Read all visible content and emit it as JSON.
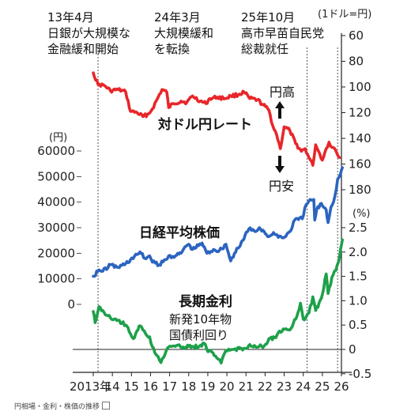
{
  "annotations": [
    {
      "line1": "13年4月",
      "line2": "日銀が大規模な",
      "line3": "金融緩和開始"
    },
    {
      "line1": "24年3月",
      "line2": "大規模緩和",
      "line3": "を転換"
    },
    {
      "line1": "25年10月",
      "line2": "高市早苗自民党",
      "line3": "総裁就任"
    }
  ],
  "caption": "円相場・金利・株価の推移",
  "colors": {
    "usdjpy": "#e8262a",
    "nikkei": "#2b64c0",
    "jgb": "#1ea04a",
    "axis": "#222222",
    "guide": "#555555"
  },
  "chart_data": {
    "type": "line",
    "x": {
      "range": [
        2013.0,
        2026.0
      ],
      "tick_labels": [
        "2013年",
        "14",
        "15",
        "16",
        "17",
        "18",
        "19",
        "20",
        "21",
        "22",
        "23",
        "24",
        "25",
        "26"
      ]
    },
    "series": [
      {
        "key": "usdjpy",
        "name": "対ドル円レート",
        "axis": "right-top",
        "unit_label": "(1ドル=円)",
        "y_ticks": [
          60,
          80,
          100,
          120,
          140,
          160,
          180
        ],
        "y_range": [
          60,
          180
        ],
        "inverted": true,
        "direction_labels": {
          "up": "円高",
          "down": "円安"
        },
        "points": [
          [
            2013.0,
            89
          ],
          [
            2013.25,
            98
          ],
          [
            2013.6,
            99
          ],
          [
            2013.9,
            103
          ],
          [
            2014.3,
            102
          ],
          [
            2014.7,
            104
          ],
          [
            2014.95,
            119
          ],
          [
            2015.3,
            120
          ],
          [
            2015.6,
            123
          ],
          [
            2015.9,
            121
          ],
          [
            2016.1,
            117
          ],
          [
            2016.4,
            108
          ],
          [
            2016.6,
            102
          ],
          [
            2016.85,
            104
          ],
          [
            2016.95,
            116
          ],
          [
            2017.2,
            113
          ],
          [
            2017.6,
            111
          ],
          [
            2017.9,
            112
          ],
          [
            2018.2,
            107
          ],
          [
            2018.6,
            111
          ],
          [
            2018.9,
            113
          ],
          [
            2019.1,
            109
          ],
          [
            2019.5,
            108
          ],
          [
            2019.9,
            109
          ],
          [
            2020.2,
            107
          ],
          [
            2020.6,
            106
          ],
          [
            2020.9,
            104
          ],
          [
            2021.2,
            109
          ],
          [
            2021.6,
            110
          ],
          [
            2021.9,
            114
          ],
          [
            2022.2,
            118
          ],
          [
            2022.4,
            130
          ],
          [
            2022.6,
            137
          ],
          [
            2022.8,
            148
          ],
          [
            2023.0,
            131
          ],
          [
            2023.3,
            134
          ],
          [
            2023.6,
            144
          ],
          [
            2023.9,
            150
          ],
          [
            2024.1,
            148
          ],
          [
            2024.3,
            155
          ],
          [
            2024.5,
            161
          ],
          [
            2024.65,
            145
          ],
          [
            2024.8,
            150
          ],
          [
            2025.0,
            157
          ],
          [
            2025.2,
            148
          ],
          [
            2025.35,
            143
          ],
          [
            2025.5,
            147
          ],
          [
            2025.65,
            148
          ],
          [
            2025.8,
            153
          ],
          [
            2025.9,
            155
          ]
        ]
      },
      {
        "key": "nikkei",
        "name": "日経平均株価",
        "axis": "left",
        "unit_label": "(円)",
        "y_ticks": [
          0,
          10000,
          20000,
          30000,
          40000,
          50000,
          60000
        ],
        "y_range": [
          0,
          60000
        ],
        "points": [
          [
            2013.0,
            11000
          ],
          [
            2013.3,
            13500
          ],
          [
            2013.5,
            13000
          ],
          [
            2013.9,
            15500
          ],
          [
            2014.3,
            14500
          ],
          [
            2014.7,
            16000
          ],
          [
            2014.95,
            17500
          ],
          [
            2015.3,
            19500
          ],
          [
            2015.45,
            20500
          ],
          [
            2015.7,
            18000
          ],
          [
            2015.95,
            19000
          ],
          [
            2016.1,
            16500
          ],
          [
            2016.45,
            15500
          ],
          [
            2016.8,
            17500
          ],
          [
            2016.95,
            19000
          ],
          [
            2017.3,
            19000
          ],
          [
            2017.6,
            20000
          ],
          [
            2017.8,
            22500
          ],
          [
            2018.0,
            23500
          ],
          [
            2018.2,
            21500
          ],
          [
            2018.7,
            24000
          ],
          [
            2018.95,
            20000
          ],
          [
            2019.3,
            21500
          ],
          [
            2019.6,
            21000
          ],
          [
            2019.95,
            23500
          ],
          [
            2020.2,
            17000
          ],
          [
            2020.4,
            20000
          ],
          [
            2020.7,
            23000
          ],
          [
            2020.95,
            27000
          ],
          [
            2021.15,
            29500
          ],
          [
            2021.5,
            28500
          ],
          [
            2021.7,
            30000
          ],
          [
            2021.95,
            28500
          ],
          [
            2022.2,
            26500
          ],
          [
            2022.5,
            27500
          ],
          [
            2022.95,
            26000
          ],
          [
            2023.3,
            28500
          ],
          [
            2023.55,
            33000
          ],
          [
            2023.95,
            33500
          ],
          [
            2024.15,
            39000
          ],
          [
            2024.3,
            40500
          ],
          [
            2024.55,
            41000
          ],
          [
            2024.6,
            33000
          ],
          [
            2024.7,
            37000
          ],
          [
            2024.95,
            39500
          ],
          [
            2025.2,
            37000
          ],
          [
            2025.3,
            32000
          ],
          [
            2025.45,
            38000
          ],
          [
            2025.65,
            42000
          ],
          [
            2025.8,
            49000
          ],
          [
            2025.95,
            51000
          ],
          [
            2026.05,
            53500
          ]
        ]
      },
      {
        "key": "jgb",
        "name": "長期金利",
        "sub_label": [
          "新発10年物",
          "国債利回り"
        ],
        "axis": "right-bottom",
        "unit_label": "(%)",
        "y_ticks": [
          -0.5,
          0,
          0.5,
          1.0,
          1.5,
          2.0,
          2.5
        ],
        "y_tick_labels": [
          "-0.5",
          "0",
          "0.5",
          "1.0",
          "1.5",
          "2.0",
          "2.5"
        ],
        "y_range": [
          -0.5,
          2.5
        ],
        "points": [
          [
            2013.0,
            0.78
          ],
          [
            2013.1,
            0.55
          ],
          [
            2013.3,
            0.88
          ],
          [
            2013.5,
            0.8
          ],
          [
            2013.9,
            0.65
          ],
          [
            2014.3,
            0.6
          ],
          [
            2014.7,
            0.5
          ],
          [
            2014.95,
            0.32
          ],
          [
            2015.1,
            0.22
          ],
          [
            2015.4,
            0.48
          ],
          [
            2015.6,
            0.4
          ],
          [
            2015.95,
            0.26
          ],
          [
            2016.1,
            0.05
          ],
          [
            2016.4,
            -0.15
          ],
          [
            2016.55,
            -0.27
          ],
          [
            2016.8,
            -0.05
          ],
          [
            2016.95,
            0.05
          ],
          [
            2017.3,
            0.06
          ],
          [
            2017.7,
            0.05
          ],
          [
            2018.0,
            0.06
          ],
          [
            2018.5,
            0.05
          ],
          [
            2018.8,
            0.13
          ],
          [
            2018.95,
            0.0
          ],
          [
            2019.2,
            -0.05
          ],
          [
            2019.55,
            -0.2
          ],
          [
            2019.7,
            -0.28
          ],
          [
            2019.95,
            -0.02
          ],
          [
            2020.3,
            0.0
          ],
          [
            2020.7,
            0.03
          ],
          [
            2020.95,
            0.02
          ],
          [
            2021.2,
            0.1
          ],
          [
            2021.5,
            0.05
          ],
          [
            2021.95,
            0.07
          ],
          [
            2022.2,
            0.22
          ],
          [
            2022.5,
            0.24
          ],
          [
            2022.95,
            0.42
          ],
          [
            2023.3,
            0.4
          ],
          [
            2023.6,
            0.62
          ],
          [
            2023.85,
            0.95
          ],
          [
            2024.0,
            0.62
          ],
          [
            2024.3,
            0.75
          ],
          [
            2024.5,
            1.08
          ],
          [
            2024.65,
            0.8
          ],
          [
            2024.95,
            1.05
          ],
          [
            2025.2,
            1.55
          ],
          [
            2025.3,
            1.15
          ],
          [
            2025.5,
            1.48
          ],
          [
            2025.7,
            1.62
          ],
          [
            2025.85,
            1.8
          ],
          [
            2025.95,
            2.05
          ],
          [
            2026.05,
            2.25
          ]
        ]
      }
    ],
    "event_lines": [
      2013.25,
      2024.2,
      2025.8
    ]
  }
}
